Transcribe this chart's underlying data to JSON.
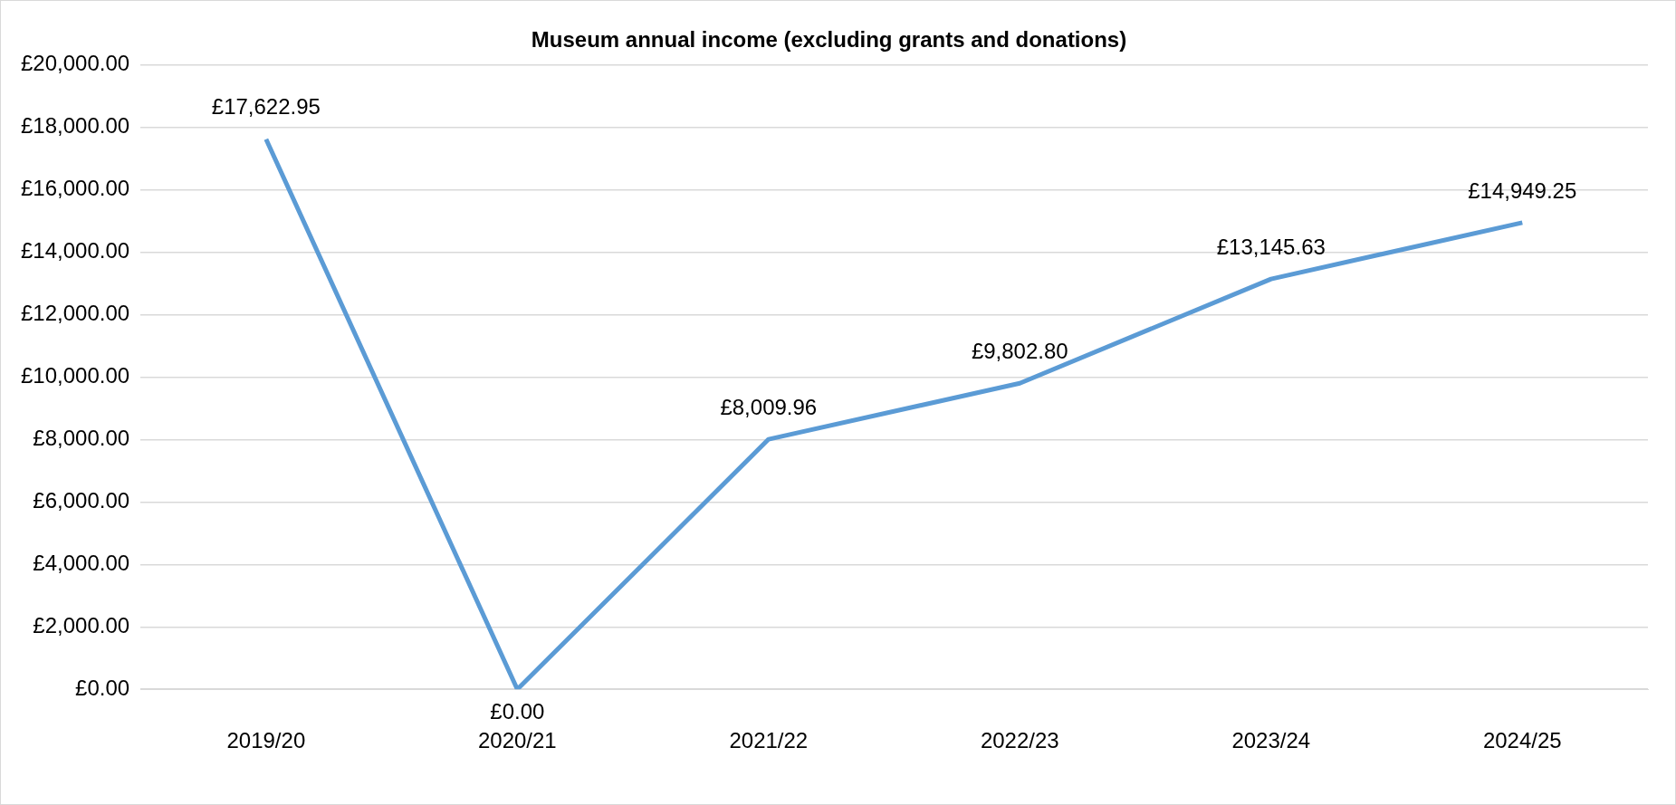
{
  "chart_data": {
    "type": "line",
    "title": "Museum annual income (excluding grants and donations)",
    "categories": [
      "2019/20",
      "2020/21",
      "2021/22",
      "2022/23",
      "2023/24",
      "2024/25"
    ],
    "values": [
      17622.95,
      0,
      8009.96,
      9802.8,
      13145.63,
      14949.25
    ],
    "value_labels": [
      "£17,622.95",
      "£0.00",
      "£8,009.96",
      "£9,802.80",
      "£13,145.63",
      "£14,949.25"
    ],
    "color": "#5b9bd5",
    "ylim": [
      0,
      20000
    ],
    "yticks": [
      {
        "value": 0,
        "label": "£0.00"
      },
      {
        "value": 2000,
        "label": "£2,000.00"
      },
      {
        "value": 4000,
        "label": "£4,000.00"
      },
      {
        "value": 6000,
        "label": "£6,000.00"
      },
      {
        "value": 8000,
        "label": "£8,000.00"
      },
      {
        "value": 10000,
        "label": "£10,000.00"
      },
      {
        "value": 12000,
        "label": "£12,000.00"
      },
      {
        "value": 14000,
        "label": "£14,000.00"
      },
      {
        "value": 16000,
        "label": "£16,000.00"
      },
      {
        "value": 18000,
        "label": "£18,000.00"
      },
      {
        "value": 20000,
        "label": "£20,000.00"
      }
    ],
    "grid": "y",
    "legend": false,
    "marker": "none",
    "line_style": "solid"
  }
}
